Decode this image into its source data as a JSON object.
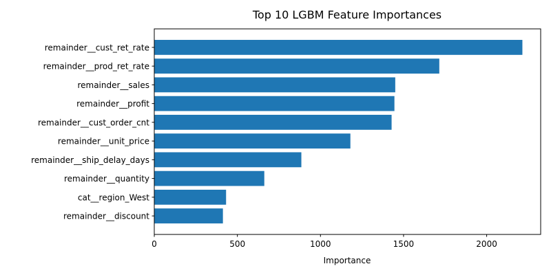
{
  "chart_data": {
    "type": "bar",
    "orientation": "horizontal",
    "title": "Top 10 LGBM Feature Importances",
    "xlabel": "Importance",
    "ylabel": "",
    "categories": [
      "remainder__cust_ret_rate",
      "remainder__prod_ret_rate",
      "remainder__sales",
      "remainder__profit",
      "remainder__cust_order_cnt",
      "remainder__unit_price",
      "remainder__ship_delay_days",
      "remainder__quantity",
      "cat__region_West",
      "remainder__discount"
    ],
    "values": [
      2215,
      1715,
      1450,
      1445,
      1428,
      1180,
      885,
      662,
      432,
      413
    ],
    "xlim": [
      0,
      2325
    ],
    "xticks": [
      0,
      500,
      1000,
      1500,
      2000
    ],
    "bar_color": "#1f77b4",
    "grid": false,
    "legend": "none"
  }
}
